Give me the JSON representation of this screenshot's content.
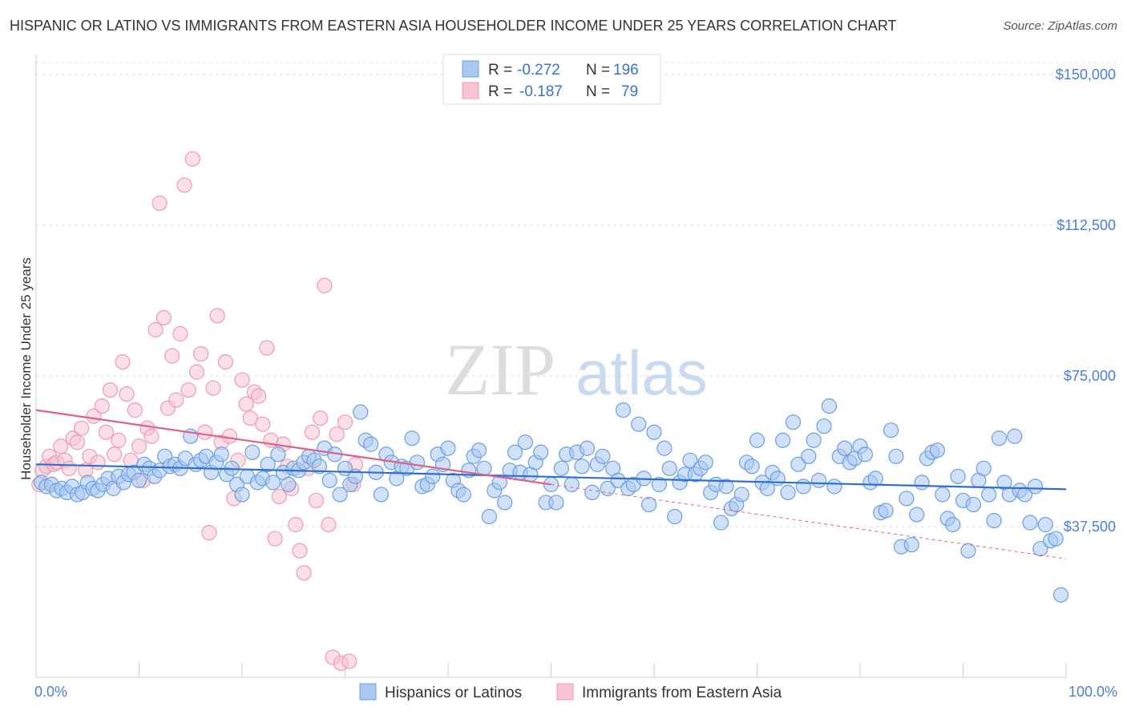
{
  "header": {
    "title": "HISPANIC OR LATINO VS IMMIGRANTS FROM EASTERN ASIA HOUSEHOLDER INCOME UNDER 25 YEARS CORRELATION CHART",
    "source": "Source: ZipAtlas.com"
  },
  "watermark": {
    "zip": "ZIP",
    "atlas": "atlas"
  },
  "legend_box": {
    "rows": [
      {
        "r_label": "R =",
        "r_value": "-0.272",
        "n_label": "N =",
        "n_value": "196",
        "color": "#7ba7e8"
      },
      {
        "r_label": "R =",
        "r_value": "-0.187",
        "n_label": "N =",
        "n_value": "79",
        "color": "#f2a2bd"
      }
    ]
  },
  "chart_data": {
    "type": "scatter",
    "title": "HISPANIC OR LATINO VS IMMIGRANTS FROM EASTERN ASIA HOUSEHOLDER INCOME UNDER 25 YEARS CORRELATION CHART",
    "xlabel": "",
    "ylabel": "Householder Income Under 25 years",
    "xlim": [
      0,
      100
    ],
    "ylim": [
      0,
      155000
    ],
    "x_tick_labels": [
      "0.0%",
      "100.0%"
    ],
    "y_ticks": [
      37500,
      75000,
      112500,
      150000
    ],
    "y_tick_labels": [
      "$37,500",
      "$75,000",
      "$112,500",
      "$150,000"
    ],
    "grid": true,
    "legend_position": "bottom",
    "colors": {
      "blue_fill": "#aac8f0",
      "blue_stroke": "#6b9fe0",
      "blue_line": "#2f6fd0",
      "pink_fill": "#f8c4d4",
      "pink_stroke": "#ee9ab6",
      "pink_line": "#e0608a",
      "axis_text": "#4a7fd4"
    },
    "series": [
      {
        "name": "Hispanics or Latinos",
        "r": -0.272,
        "n": 196,
        "trend": {
          "x": [
            0,
            100
          ],
          "y": [
            53000,
            46800
          ]
        },
        "points": [
          [
            0.5,
            48500
          ],
          [
            1,
            47500
          ],
          [
            1.5,
            48000
          ],
          [
            2,
            46500
          ],
          [
            2.5,
            47000
          ],
          [
            3,
            46000
          ],
          [
            3.5,
            47500
          ],
          [
            4,
            45500
          ],
          [
            4.5,
            46000
          ],
          [
            5,
            48500
          ],
          [
            5.5,
            47000
          ],
          [
            6,
            46500
          ],
          [
            6.5,
            48000
          ],
          [
            7,
            49500
          ],
          [
            7.5,
            47000
          ],
          [
            8,
            50000
          ],
          [
            8.5,
            48500
          ],
          [
            9,
            50500
          ],
          [
            9.5,
            51000
          ],
          [
            10,
            49000
          ],
          [
            10.5,
            53000
          ],
          [
            11,
            52000
          ],
          [
            11.5,
            50000
          ],
          [
            12,
            51500
          ],
          [
            12.5,
            55000
          ],
          [
            13,
            52500
          ],
          [
            13.5,
            53000
          ],
          [
            14,
            52000
          ],
          [
            14.5,
            54500
          ],
          [
            15,
            60000
          ],
          [
            15.5,
            53000
          ],
          [
            16,
            54000
          ],
          [
            16.5,
            55000
          ],
          [
            17,
            51000
          ],
          [
            17.5,
            53500
          ],
          [
            18,
            55500
          ],
          [
            18.5,
            50500
          ],
          [
            19,
            52000
          ],
          [
            19.5,
            48000
          ],
          [
            20,
            45500
          ],
          [
            20.5,
            50000
          ],
          [
            21,
            56000
          ],
          [
            21.5,
            48500
          ],
          [
            22,
            49500
          ],
          [
            22.5,
            53000
          ],
          [
            23,
            48500
          ],
          [
            23.5,
            55500
          ],
          [
            24,
            51000
          ],
          [
            24.5,
            48000
          ],
          [
            25,
            52000
          ],
          [
            25.5,
            51500
          ],
          [
            26,
            53500
          ],
          [
            26.5,
            55000
          ],
          [
            27,
            54000
          ],
          [
            27.5,
            52500
          ],
          [
            28,
            57000
          ],
          [
            28.5,
            49000
          ],
          [
            29,
            55500
          ],
          [
            29.5,
            45500
          ],
          [
            30,
            52000
          ],
          [
            30.5,
            48000
          ],
          [
            31,
            50000
          ],
          [
            31.5,
            66000
          ],
          [
            32,
            59000
          ],
          [
            32.5,
            58000
          ],
          [
            33,
            51000
          ],
          [
            33.5,
            45500
          ],
          [
            34,
            55500
          ],
          [
            34.5,
            53500
          ],
          [
            35,
            49500
          ],
          [
            35.5,
            52500
          ],
          [
            36,
            52000
          ],
          [
            36.5,
            59500
          ],
          [
            37,
            53500
          ],
          [
            37.5,
            47500
          ],
          [
            38,
            48000
          ],
          [
            38.5,
            50000
          ],
          [
            39,
            55500
          ],
          [
            39.5,
            53000
          ],
          [
            40,
            57000
          ],
          [
            40.5,
            49000
          ],
          [
            41,
            46500
          ],
          [
            41.5,
            45500
          ],
          [
            42,
            51500
          ],
          [
            42.5,
            55000
          ],
          [
            43,
            56500
          ],
          [
            43.5,
            52000
          ],
          [
            44,
            40000
          ],
          [
            44.5,
            46500
          ],
          [
            45,
            48500
          ],
          [
            45.5,
            43500
          ],
          [
            46,
            51500
          ],
          [
            46.5,
            56000
          ],
          [
            47,
            51000
          ],
          [
            47.5,
            58500
          ],
          [
            48,
            50500
          ],
          [
            48.5,
            53500
          ],
          [
            49,
            56000
          ],
          [
            49.5,
            43500
          ],
          [
            50,
            48000
          ],
          [
            50.5,
            43500
          ],
          [
            51,
            52000
          ],
          [
            51.5,
            55500
          ],
          [
            52,
            48000
          ],
          [
            52.5,
            56000
          ],
          [
            53,
            52500
          ],
          [
            53.5,
            57000
          ],
          [
            54,
            46000
          ],
          [
            54.5,
            53000
          ],
          [
            55,
            55000
          ],
          [
            55.5,
            47000
          ],
          [
            56,
            52000
          ],
          [
            56.5,
            49000
          ],
          [
            57,
            66500
          ],
          [
            57.5,
            47000
          ],
          [
            58,
            48000
          ],
          [
            58.5,
            63000
          ],
          [
            59,
            49500
          ],
          [
            59.5,
            43000
          ],
          [
            60,
            61000
          ],
          [
            60.5,
            48000
          ],
          [
            61,
            57000
          ],
          [
            61.5,
            52000
          ],
          [
            62,
            40000
          ],
          [
            62.5,
            48500
          ],
          [
            63,
            50500
          ],
          [
            63.5,
            54000
          ],
          [
            64,
            50500
          ],
          [
            64.5,
            52000
          ],
          [
            65,
            53500
          ],
          [
            65.5,
            46000
          ],
          [
            66,
            48000
          ],
          [
            66.5,
            38500
          ],
          [
            67,
            47500
          ],
          [
            67.5,
            42000
          ],
          [
            68,
            43000
          ],
          [
            68.5,
            45500
          ],
          [
            69,
            53500
          ],
          [
            69.5,
            52500
          ],
          [
            70,
            59000
          ],
          [
            70.5,
            48500
          ],
          [
            71,
            47000
          ],
          [
            71.5,
            51000
          ],
          [
            72,
            49500
          ],
          [
            72.5,
            59000
          ],
          [
            73,
            46000
          ],
          [
            73.5,
            63500
          ],
          [
            74,
            53000
          ],
          [
            74.5,
            47500
          ],
          [
            75,
            55000
          ],
          [
            75.5,
            59000
          ],
          [
            76,
            49000
          ],
          [
            76.5,
            62500
          ],
          [
            77,
            67500
          ],
          [
            77.5,
            47500
          ],
          [
            78,
            55000
          ],
          [
            78.5,
            57000
          ],
          [
            79,
            53500
          ],
          [
            79.5,
            54500
          ],
          [
            80,
            57500
          ],
          [
            80.5,
            55500
          ],
          [
            81,
            48500
          ],
          [
            81.5,
            49500
          ],
          [
            82,
            41000
          ],
          [
            82.5,
            41500
          ],
          [
            83,
            61500
          ],
          [
            83.5,
            55000
          ],
          [
            84,
            32500
          ],
          [
            84.5,
            44500
          ],
          [
            85,
            33000
          ],
          [
            85.5,
            40500
          ],
          [
            86,
            48500
          ],
          [
            86.5,
            54500
          ],
          [
            87,
            56000
          ],
          [
            87.5,
            56500
          ],
          [
            88,
            45500
          ],
          [
            88.5,
            39500
          ],
          [
            89,
            38000
          ],
          [
            89.5,
            50000
          ],
          [
            90,
            44000
          ],
          [
            90.5,
            31500
          ],
          [
            91,
            43000
          ],
          [
            91.5,
            49000
          ],
          [
            92,
            52000
          ],
          [
            92.5,
            45500
          ],
          [
            93,
            39000
          ],
          [
            93.5,
            59500
          ],
          [
            94,
            48500
          ],
          [
            94.5,
            45500
          ],
          [
            95,
            60000
          ],
          [
            95.5,
            46500
          ],
          [
            96,
            45500
          ],
          [
            96.5,
            38500
          ],
          [
            97,
            47500
          ],
          [
            97.5,
            32000
          ],
          [
            98,
            38000
          ],
          [
            98.5,
            34000
          ],
          [
            99,
            34500
          ],
          [
            99.5,
            20500
          ]
        ]
      },
      {
        "name": "Immigrants from Eastern Asia",
        "r": -0.187,
        "n": 79,
        "trend": {
          "x": [
            0,
            50
          ],
          "y": [
            66500,
            48000
          ]
        },
        "trend_dashed": {
          "x": [
            50,
            100
          ],
          "y": [
            48000,
            29500
          ]
        },
        "points": [
          [
            0.3,
            48000
          ],
          [
            0.6,
            51500
          ],
          [
            1,
            52500
          ],
          [
            1.3,
            55000
          ],
          [
            1.7,
            53000
          ],
          [
            2,
            53500
          ],
          [
            2.4,
            57500
          ],
          [
            2.8,
            54000
          ],
          [
            3.2,
            52000
          ],
          [
            3.6,
            59500
          ],
          [
            4,
            58500
          ],
          [
            4.4,
            62000
          ],
          [
            4.8,
            51500
          ],
          [
            5.2,
            55000
          ],
          [
            5.6,
            65000
          ],
          [
            6,
            53500
          ],
          [
            6.4,
            67500
          ],
          [
            6.8,
            61000
          ],
          [
            7.2,
            71500
          ],
          [
            7.6,
            55500
          ],
          [
            8,
            59000
          ],
          [
            8.4,
            78500
          ],
          [
            8.8,
            70500
          ],
          [
            9.2,
            54000
          ],
          [
            9.6,
            66500
          ],
          [
            10,
            57500
          ],
          [
            10.4,
            49000
          ],
          [
            10.8,
            62000
          ],
          [
            11.2,
            60000
          ],
          [
            11.6,
            86500
          ],
          [
            12,
            118000
          ],
          [
            12.4,
            89500
          ],
          [
            12.8,
            67000
          ],
          [
            13.2,
            80000
          ],
          [
            13.6,
            69000
          ],
          [
            14,
            85500
          ],
          [
            14.4,
            122500
          ],
          [
            14.8,
            71500
          ],
          [
            15.2,
            129000
          ],
          [
            15.6,
            76000
          ],
          [
            16,
            80500
          ],
          [
            16.4,
            61000
          ],
          [
            16.8,
            36000
          ],
          [
            17.2,
            72000
          ],
          [
            17.6,
            90000
          ],
          [
            18,
            58500
          ],
          [
            18.4,
            78500
          ],
          [
            18.8,
            60000
          ],
          [
            19.2,
            44500
          ],
          [
            19.6,
            54000
          ],
          [
            20,
            74000
          ],
          [
            20.4,
            68000
          ],
          [
            20.8,
            64500
          ],
          [
            21.2,
            71000
          ],
          [
            21.6,
            70000
          ],
          [
            22,
            63000
          ],
          [
            22.4,
            82000
          ],
          [
            22.8,
            59000
          ],
          [
            23.2,
            34500
          ],
          [
            23.6,
            45000
          ],
          [
            24,
            58000
          ],
          [
            24.4,
            52500
          ],
          [
            24.8,
            47000
          ],
          [
            25.2,
            38000
          ],
          [
            25.6,
            31500
          ],
          [
            26,
            26000
          ],
          [
            26.4,
            52000
          ],
          [
            26.8,
            61000
          ],
          [
            27.2,
            44000
          ],
          [
            27.6,
            64500
          ],
          [
            28,
            97500
          ],
          [
            28.4,
            38000
          ],
          [
            28.8,
            5000
          ],
          [
            29.2,
            60500
          ],
          [
            29.6,
            3500
          ],
          [
            30,
            63500
          ],
          [
            30.4,
            4000
          ],
          [
            30.8,
            48000
          ],
          [
            31,
            53000
          ]
        ]
      }
    ]
  },
  "bottom_legend": {
    "items": [
      {
        "label": "Hispanics or Latinos",
        "color": "#aac8f0"
      },
      {
        "label": "Immigrants from Eastern Asia",
        "color": "#f8c4d4"
      }
    ]
  }
}
